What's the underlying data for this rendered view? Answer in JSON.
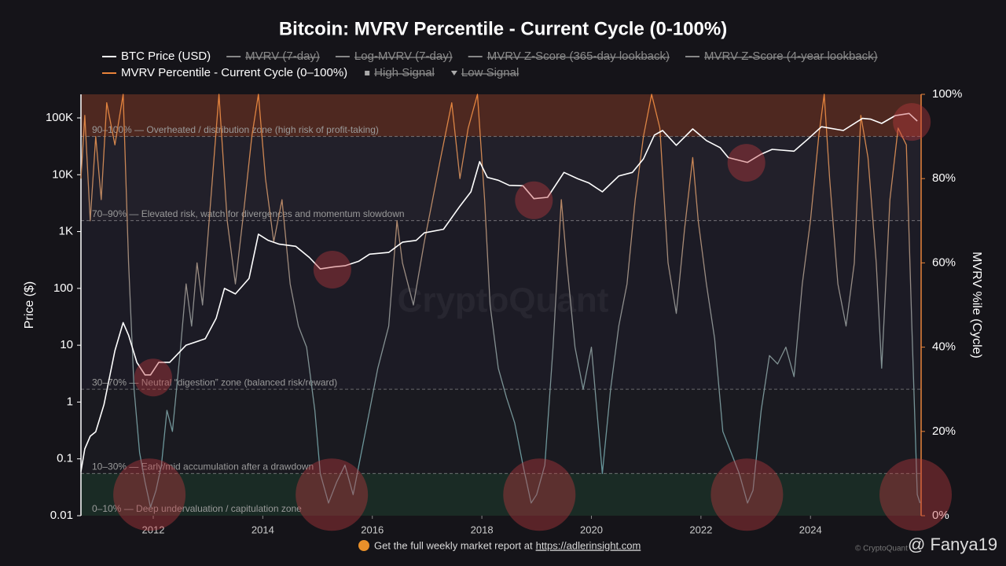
{
  "chart_data": {
    "type": "line",
    "title": "Bitcoin: MVRV Percentile - Current Cycle (0-100%)",
    "xlim": [
      2010.68,
      2026.02
    ],
    "xticks": [
      2012,
      2014,
      2016,
      2018,
      2020,
      2022,
      2024
    ],
    "ylim": [
      0.01,
      260000
    ],
    "ylog": true,
    "yticks": [
      {
        "value": 100000,
        "label": "100K"
      },
      {
        "value": 10000,
        "label": "10K"
      },
      {
        "value": 1000,
        "label": "1K"
      },
      100,
      10,
      1,
      0.1,
      0.01
    ],
    "ylabel": "Price ($)",
    "y2lim": [
      0,
      100
    ],
    "y2ticks": [
      {
        "value": 0,
        "label": "0%"
      },
      {
        "value": 20,
        "label": "20%"
      },
      {
        "value": 40,
        "label": "40%"
      },
      {
        "value": 60,
        "label": "60%"
      },
      {
        "value": 80,
        "label": "80%"
      },
      {
        "value": 100,
        "label": "100%"
      }
    ],
    "y2label": "MVRV %ile (Cycle)",
    "grid": false,
    "series": [
      {
        "name": "BTC Price (USD)",
        "color": "#ffffff",
        "axis": "y",
        "x": [
          2010.68,
          2010.75,
          2010.85,
          2010.95,
          2011.1,
          2011.3,
          2011.45,
          2011.55,
          2011.7,
          2011.85,
          2011.95,
          2012.1,
          2012.3,
          2012.6,
          2012.95,
          2013.15,
          2013.3,
          2013.5,
          2013.75,
          2013.92,
          2014.1,
          2014.3,
          2014.6,
          2014.85,
          2015.05,
          2015.3,
          2015.5,
          2015.75,
          2015.95,
          2016.3,
          2016.55,
          2016.8,
          2016.95,
          2017.3,
          2017.6,
          2017.8,
          2017.96,
          2018.1,
          2018.3,
          2018.5,
          2018.75,
          2018.95,
          2019.2,
          2019.5,
          2019.75,
          2019.95,
          2020.2,
          2020.5,
          2020.75,
          2020.95,
          2021.15,
          2021.3,
          2021.55,
          2021.85,
          2022.1,
          2022.35,
          2022.5,
          2022.85,
          2023.1,
          2023.3,
          2023.7,
          2023.95,
          2024.2,
          2024.6,
          2024.95,
          2025.1,
          2025.3,
          2025.55,
          2025.8,
          2025.95
        ],
        "values": [
          0.06,
          0.15,
          0.25,
          0.3,
          0.9,
          8,
          25,
          15,
          5,
          3,
          3,
          5,
          5,
          10,
          13,
          30,
          100,
          80,
          150,
          900,
          700,
          600,
          550,
          350,
          220,
          240,
          250,
          300,
          400,
          430,
          650,
          700,
          950,
          1100,
          2800,
          5000,
          17000,
          9000,
          8000,
          6500,
          6400,
          3800,
          4000,
          11000,
          8500,
          7200,
          5000,
          9500,
          11000,
          19000,
          50000,
          60000,
          33000,
          64000,
          40000,
          30000,
          20000,
          16500,
          23000,
          28000,
          26000,
          42000,
          70000,
          60000,
          98000,
          95000,
          80000,
          110000,
          120000,
          88000
        ]
      },
      {
        "name": "MVRV Percentile - Current Cycle (0–100%)",
        "color": "#e8833a",
        "low_color": "#5b9aa0",
        "axis": "y2",
        "x": [
          2010.68,
          2010.75,
          2010.85,
          2010.95,
          2011.05,
          2011.15,
          2011.3,
          2011.45,
          2011.55,
          2011.65,
          2011.75,
          2011.85,
          2011.95,
          2012.05,
          2012.15,
          2012.25,
          2012.35,
          2012.5,
          2012.6,
          2012.7,
          2012.8,
          2012.9,
          2013.05,
          2013.2,
          2013.35,
          2013.5,
          2013.65,
          2013.8,
          2013.92,
          2014.05,
          2014.2,
          2014.35,
          2014.5,
          2014.65,
          2014.8,
          2014.95,
          2015.05,
          2015.2,
          2015.35,
          2015.5,
          2015.65,
          2015.8,
          2015.95,
          2016.1,
          2016.3,
          2016.45,
          2016.55,
          2016.75,
          2016.95,
          2017.1,
          2017.25,
          2017.45,
          2017.6,
          2017.75,
          2017.92,
          2018.05,
          2018.15,
          2018.3,
          2018.45,
          2018.6,
          2018.75,
          2018.9,
          2019.0,
          2019.15,
          2019.3,
          2019.45,
          2019.55,
          2019.7,
          2019.85,
          2020.0,
          2020.2,
          2020.35,
          2020.5,
          2020.65,
          2020.8,
          2020.95,
          2021.1,
          2021.25,
          2021.4,
          2021.55,
          2021.7,
          2021.85,
          2021.95,
          2022.1,
          2022.25,
          2022.4,
          2022.55,
          2022.7,
          2022.85,
          2022.95,
          2023.1,
          2023.25,
          2023.4,
          2023.55,
          2023.7,
          2023.85,
          2024.0,
          2024.15,
          2024.25,
          2024.35,
          2024.5,
          2024.65,
          2024.8,
          2024.92,
          2025.05,
          2025.2,
          2025.3,
          2025.45,
          2025.6,
          2025.75,
          2025.85,
          2025.95,
          2026.0
        ],
        "values": [
          80,
          95,
          70,
          90,
          75,
          98,
          88,
          100,
          60,
          30,
          15,
          8,
          2,
          6,
          12,
          25,
          20,
          40,
          55,
          45,
          60,
          50,
          75,
          100,
          70,
          55,
          72,
          90,
          100,
          80,
          65,
          75,
          55,
          45,
          40,
          25,
          10,
          3,
          8,
          12,
          5,
          15,
          25,
          35,
          45,
          70,
          60,
          50,
          65,
          75,
          85,
          98,
          80,
          92,
          100,
          75,
          50,
          35,
          28,
          22,
          12,
          3,
          5,
          12,
          40,
          75,
          60,
          40,
          30,
          40,
          10,
          30,
          45,
          55,
          75,
          90,
          100,
          92,
          60,
          48,
          68,
          85,
          70,
          55,
          42,
          20,
          15,
          10,
          3,
          6,
          25,
          38,
          36,
          40,
          33,
          55,
          70,
          90,
          100,
          80,
          55,
          45,
          60,
          95,
          85,
          60,
          35,
          75,
          92,
          88,
          45,
          5,
          3
        ]
      }
    ],
    "hidden_series": [
      {
        "name": "MVRV (7-day)",
        "color": "#888888",
        "marker": "line"
      },
      {
        "name": "Log-MVRV (7-day)",
        "color": "#888888",
        "marker": "line"
      },
      {
        "name": "MVRV Z-Score (365-day lookback)",
        "color": "#888888",
        "marker": "line"
      },
      {
        "name": "MVRV Z-Score (4-year lookback)",
        "color": "#888888",
        "marker": "line"
      },
      {
        "name": "High Signal",
        "color": "#aaaaaa",
        "marker": "square"
      },
      {
        "name": "Low Signal",
        "color": "#aaaaaa",
        "marker": "triangle"
      }
    ],
    "zones": [
      {
        "from": 90,
        "to": 100,
        "label": "90–100% — Overheated / distribution zone (high risk of profit-taking)",
        "color": "#7a3520"
      },
      {
        "from": 70,
        "to": 90,
        "label": "70–90% — Elevated risk, watch for divergences and momentum slowdown",
        "color": "#2a2733"
      },
      {
        "from": 30,
        "to": 70,
        "label": "30–70% — Neutral “digestion” zone (balanced risk/reward)",
        "color": "#1f1e29"
      },
      {
        "from": 10,
        "to": 30,
        "label": "10–30% — Early/mid accumulation after a drawdown",
        "color": "#1b1b20"
      },
      {
        "from": 0,
        "to": 10,
        "label": "0–10% — Deep undervaluation / capitulation zone",
        "color": "#1c3a2a"
      }
    ],
    "highlights": [
      {
        "x": 2012.0,
        "y": 2.7,
        "axis": "y"
      },
      {
        "x": 2015.27,
        "y": 214,
        "axis": "y"
      },
      {
        "x": 2018.95,
        "y": 3550,
        "axis": "y"
      },
      {
        "x": 2022.83,
        "y": 16200,
        "axis": "y"
      },
      {
        "x": 2025.85,
        "y": 85000,
        "axis": "y"
      },
      {
        "x": 2011.93,
        "y": 5,
        "axis": "y2"
      },
      {
        "x": 2015.26,
        "y": 5,
        "axis": "y2"
      },
      {
        "x": 2019.05,
        "y": 5,
        "axis": "y2"
      },
      {
        "x": 2022.84,
        "y": 5,
        "axis": "y2"
      },
      {
        "x": 2025.92,
        "y": 5,
        "axis": "y2"
      }
    ],
    "watermark": "CryptoQuant",
    "footer": {
      "text": "Get the full weekly market report at",
      "link": "https://adlerinsight.com"
    },
    "copyright": "© CryptoQuant",
    "credit": "@ Fanya19"
  }
}
